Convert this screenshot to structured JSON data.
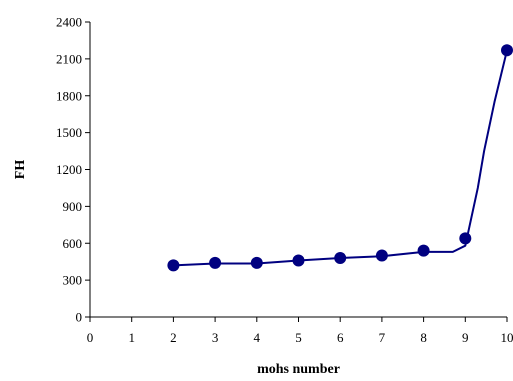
{
  "chart_data": {
    "type": "line",
    "title": "",
    "xlabel": "mohs number",
    "ylabel": "FH",
    "xlim": [
      0,
      10
    ],
    "ylim": [
      0,
      2400
    ],
    "x_ticks": [
      "0",
      "1",
      "2",
      "3",
      "4",
      "5",
      "6",
      "7",
      "8",
      "9",
      "10"
    ],
    "y_ticks": [
      "0",
      "300",
      "600",
      "900",
      "1200",
      "1500",
      "1800",
      "2100",
      "2400"
    ],
    "grid": false,
    "legend": "none",
    "colors": {
      "series": "#000080",
      "axis": "#000000"
    },
    "series": [
      {
        "markers": [
          {
            "x": 2,
            "y": 420
          },
          {
            "x": 3,
            "y": 440
          },
          {
            "x": 4,
            "y": 440
          },
          {
            "x": 5,
            "y": 460
          },
          {
            "x": 6,
            "y": 480
          },
          {
            "x": 7,
            "y": 500
          },
          {
            "x": 8,
            "y": 540
          },
          {
            "x": 9,
            "y": 640
          },
          {
            "x": 10,
            "y": 2170
          }
        ],
        "curve": [
          {
            "x": 2,
            "y": 420
          },
          {
            "x": 3,
            "y": 435
          },
          {
            "x": 4,
            "y": 435
          },
          {
            "x": 5,
            "y": 460
          },
          {
            "x": 6,
            "y": 480
          },
          {
            "x": 7,
            "y": 495
          },
          {
            "x": 8,
            "y": 530
          },
          {
            "x": 8.7,
            "y": 530
          },
          {
            "x": 9,
            "y": 580
          },
          {
            "x": 9.3,
            "y": 1050
          },
          {
            "x": 9.45,
            "y": 1350
          },
          {
            "x": 9.7,
            "y": 1750
          },
          {
            "x": 10,
            "y": 2170
          }
        ]
      }
    ]
  }
}
